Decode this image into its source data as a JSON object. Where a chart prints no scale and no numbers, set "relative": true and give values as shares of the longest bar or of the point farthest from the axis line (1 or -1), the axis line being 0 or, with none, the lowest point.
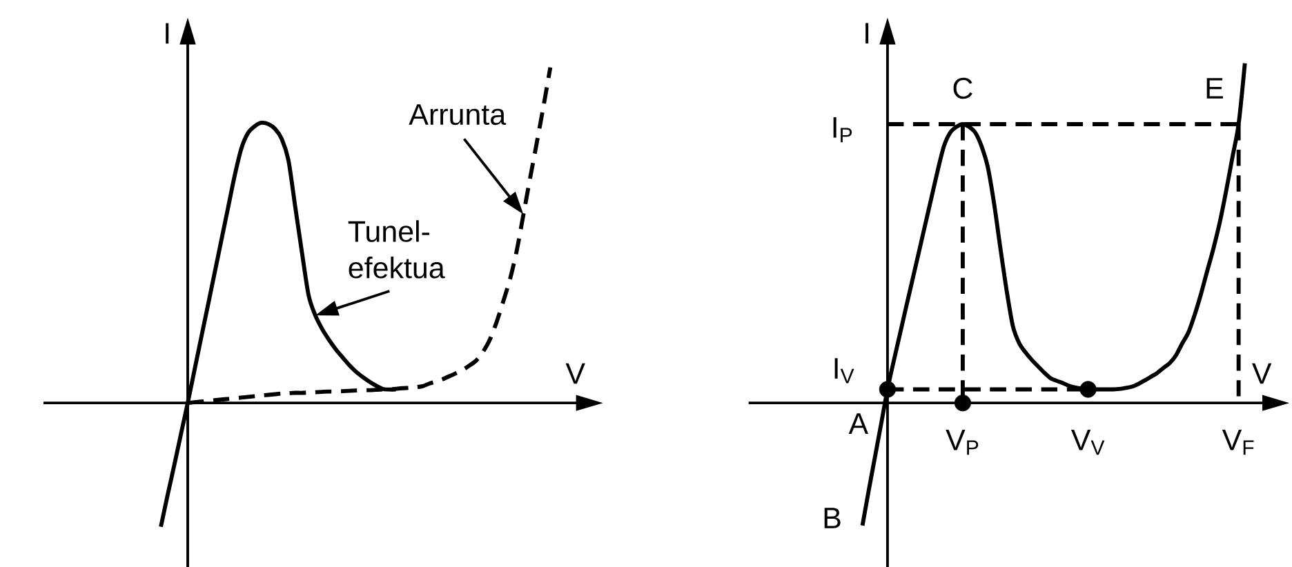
{
  "chart_data": [
    {
      "type": "line",
      "relative": true,
      "xlabel": "V",
      "ylabel": "I",
      "categories": [
        null,
        null,
        null,
        null,
        null,
        null,
        null,
        null,
        null,
        null,
        null,
        null,
        null,
        null,
        null,
        null,
        null,
        null,
        null,
        null,
        null,
        null,
        null,
        null,
        null,
        null,
        null,
        null,
        null,
        null,
        null,
        null,
        null,
        null,
        null,
        null,
        null,
        null,
        null,
        null,
        null,
        null,
        null,
        null,
        null,
        null,
        null,
        null,
        null,
        null,
        null,
        null,
        null,
        null,
        null,
        null,
        null,
        null,
        null
      ],
      "series": [
        {
          "color": "#000000",
          "values": [
            -0.369,
            -0.275,
            -0.185,
            -0.092,
            0,
            0.097,
            0.194,
            0.29,
            0.387,
            0.484,
            0.581,
            0.678,
            0.759,
            0.805,
            0.825,
            0.835,
            0.831,
            0.817,
            0.787,
            0.723,
            0.586,
            0.45,
            0.321,
            0.261,
            0.221,
            0.189,
            0.161,
            0.137,
            0.114,
            0.094,
            0.078,
            0.064,
            0.052,
            0.042,
            0.04,
            0.04,
            null,
            null,
            null,
            null,
            null,
            null,
            null,
            null,
            null,
            null,
            null,
            null,
            null,
            null,
            null,
            null,
            null,
            null,
            null,
            null,
            null,
            null,
            null
          ]
        },
        {
          "color": "#000000",
          "line_style": "dashed",
          "values": [
            null,
            null,
            null,
            null,
            0,
            0.002,
            0.004,
            0.006,
            0.008,
            0.01,
            0.012,
            0.014,
            0.016,
            0.018,
            0.02,
            0.022,
            0.024,
            0.026,
            0.028,
            0.029,
            0.03,
            0.03,
            0.031,
            0.032,
            0.033,
            0.034,
            0.034,
            0.035,
            0.036,
            0.037,
            0.038,
            0.038,
            0.039,
            0.04,
            0.04,
            0.042,
            0.044,
            0.045,
            0.047,
            0.05,
            0.058,
            0.064,
            0.071,
            0.08,
            0.089,
            0.099,
            0.112,
            0.127,
            0.153,
            0.189,
            0.241,
            0.303,
            0.369,
            0.454,
            0.562,
            0.671,
            0.777,
            0.886,
            1
          ]
        }
      ],
      "annotations": [
        "Arrunta",
        "Tunel-efektua"
      ]
    },
    {
      "type": "line",
      "relative": true,
      "xlabel": "V",
      "ylabel": "I",
      "categories": [
        null,
        null,
        null,
        null,
        null,
        null,
        null,
        null,
        null,
        null,
        null,
        null,
        null,
        null,
        null,
        null,
        "V$_{P}$",
        null,
        null,
        null,
        null,
        null,
        null,
        null,
        null,
        null,
        null,
        null,
        null,
        null,
        null,
        null,
        null,
        null,
        null,
        null,
        "V$_{V}$",
        null,
        null,
        null,
        null,
        null,
        null,
        null,
        null,
        null,
        null,
        null,
        null,
        null,
        null,
        null,
        null,
        null,
        null,
        null,
        null,
        null,
        null,
        null,
        "V$_{F}$",
        null
      ],
      "series": [
        {
          "color": "#000000",
          "values": [
            -0.361,
            -0.258,
            -0.159,
            -0.06,
            0.04,
            0.124,
            0.204,
            0.285,
            0.364,
            0.444,
            0.524,
            0.604,
            0.684,
            0.756,
            0.796,
            0.813,
            0.821,
            0.813,
            0.796,
            0.756,
            0.694,
            0.587,
            0.456,
            0.331,
            0.226,
            0.176,
            0.149,
            0.127,
            0.108,
            0.089,
            0.073,
            0.065,
            0.058,
            0.05,
            0.045,
            0.042,
            0.04,
            0.04,
            0.04,
            0.04,
            0.04,
            0.041,
            0.044,
            0.048,
            0.056,
            0.066,
            0.077,
            0.088,
            0.103,
            0.117,
            0.14,
            0.175,
            0.208,
            0.26,
            0.321,
            0.389,
            0.456,
            0.532,
            0.623,
            0.722,
            0.821,
            1
          ]
        },
        {
          "name": "I$_{P}$",
          "type": "line",
          "line_style": "dashed",
          "color": "#000000",
          "values": [
            null,
            null,
            null,
            null,
            0.821,
            0.821,
            0.821,
            0.821,
            0.821,
            0.821,
            0.821,
            0.821,
            0.821,
            0.821,
            0.821,
            0.821,
            0.821,
            0.821,
            0.821,
            0.821,
            0.821,
            0.821,
            0.821,
            0.821,
            0.821,
            0.821,
            0.821,
            0.821,
            0.821,
            0.821,
            0.821,
            0.821,
            0.821,
            0.821,
            0.821,
            0.821,
            0.821,
            0.821,
            0.821,
            0.821,
            0.821,
            0.821,
            0.821,
            0.821,
            0.821,
            0.821,
            0.821,
            0.821,
            0.821,
            0.821,
            0.821,
            0.821,
            0.821,
            0.821,
            0.821,
            0.821,
            0.821,
            0.821,
            0.821,
            0.821,
            0.821,
            null
          ]
        },
        {
          "name": "I$_{V}$",
          "type": "line",
          "line_style": "dashed",
          "color": "#000000",
          "values": [
            null,
            null,
            null,
            null,
            0.04,
            0.04,
            0.04,
            0.04,
            0.04,
            0.04,
            0.04,
            0.04,
            0.04,
            0.04,
            0.04,
            0.04,
            0.04,
            0.04,
            0.04,
            0.04,
            0.04,
            0.04,
            0.04,
            0.04,
            0.04,
            0.04,
            0.04,
            0.04,
            0.04,
            0.04,
            0.04,
            0.04,
            0.04,
            0.04,
            0.04,
            0.04,
            0.04,
            null,
            null,
            null,
            null,
            null,
            null,
            null,
            null,
            null,
            null,
            null,
            null,
            null,
            null,
            null,
            null,
            null,
            null,
            null,
            null,
            null,
            null,
            null,
            null,
            null
          ]
        },
        {
          "type": "scatter",
          "marker": "circle",
          "color": "#000000",
          "values": [
            null,
            null,
            null,
            null,
            0.04,
            null,
            null,
            null,
            null,
            null,
            null,
            null,
            null,
            null,
            null,
            null,
            0,
            null,
            null,
            null,
            null,
            null,
            null,
            null,
            null,
            null,
            null,
            null,
            null,
            null,
            null,
            null,
            null,
            null,
            null,
            null,
            0.04,
            null,
            null,
            null,
            null,
            null,
            null,
            null,
            null,
            null,
            null,
            null,
            null,
            null,
            null,
            null,
            null,
            null,
            null,
            null,
            null,
            null,
            null,
            null,
            null,
            null
          ]
        }
      ],
      "ref_lines": [
        {
          "axis": "x",
          "value": "V$_{P}$",
          "line_style": "dashed",
          "color": "#000000"
        },
        {
          "axis": "x",
          "value": "V$_{F}$",
          "line_style": "dashed",
          "color": "#000000"
        }
      ],
      "annotations": [
        {
          "text": "C",
          "x": "V$_{P}$",
          "y": 0.821
        },
        {
          "text": "E",
          "x": "V$_{F}$",
          "y": 0.821
        },
        "A",
        "B"
      ]
    }
  ]
}
